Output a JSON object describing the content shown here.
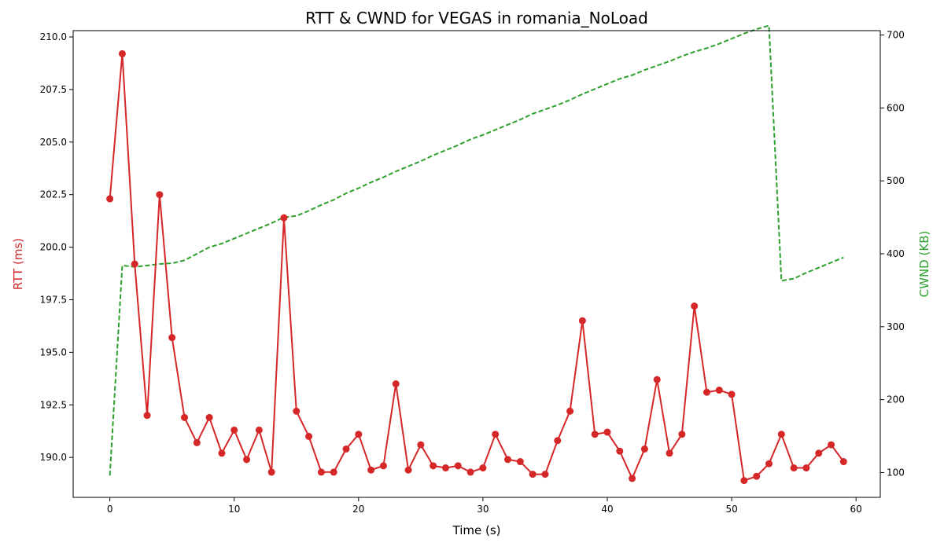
{
  "chart_data": {
    "type": "line",
    "title": "RTT & CWND for VEGAS in romania_NoLoad",
    "xlabel": "Time (s)",
    "ylabel_left": "RTT (ms)",
    "ylabel_right": "CWND (KB)",
    "xlim": [
      -2.95,
      61.95
    ],
    "ylim_left": [
      188.1,
      210.3
    ],
    "ylim_right": [
      66,
      706
    ],
    "x_ticks": [
      0,
      10,
      20,
      30,
      40,
      50,
      60
    ],
    "y_left_ticks": [
      190.0,
      192.5,
      195.0,
      197.5,
      200.0,
      202.5,
      205.0,
      207.5,
      210.0
    ],
    "y_left_tick_labels": [
      "190.0",
      "192.5",
      "195.0",
      "197.5",
      "200.0",
      "202.5",
      "205.0",
      "207.5",
      "210.0"
    ],
    "y_right_ticks": [
      100,
      200,
      300,
      400,
      500,
      600,
      700
    ],
    "grid": false,
    "colors": {
      "rtt": "#d62728",
      "cwnd": "#2ca02c"
    },
    "x": [
      0,
      1,
      2,
      3,
      4,
      5,
      6,
      7,
      8,
      9,
      10,
      11,
      12,
      13,
      14,
      15,
      16,
      17,
      18,
      19,
      20,
      21,
      22,
      23,
      24,
      25,
      26,
      27,
      28,
      29,
      30,
      31,
      32,
      33,
      34,
      35,
      36,
      37,
      38,
      39,
      40,
      41,
      42,
      43,
      44,
      45,
      46,
      47,
      48,
      49,
      50,
      51,
      52,
      53,
      54,
      55,
      56,
      57,
      58,
      59
    ],
    "series": [
      {
        "axis": "left",
        "style": "solid-with-markers",
        "values": [
          202.3,
          209.2,
          199.2,
          192.0,
          202.5,
          195.7,
          191.9,
          190.7,
          191.9,
          190.2,
          191.3,
          189.9,
          191.3,
          189.3,
          201.4,
          192.2,
          191.0,
          189.3,
          189.3,
          190.4,
          191.1,
          189.4,
          189.6,
          193.5,
          189.4,
          190.6,
          189.6,
          189.5,
          189.6,
          189.3,
          189.5,
          191.1,
          189.9,
          189.8,
          189.2,
          189.2,
          190.8,
          192.2,
          196.5,
          191.1,
          191.2,
          190.3,
          189.0,
          190.4,
          193.7,
          190.2,
          191.1,
          197.2,
          193.1,
          193.2,
          193.0,
          188.9,
          189.1,
          189.7,
          191.1,
          189.5,
          189.5,
          190.2,
          190.6,
          189.8
        ]
      },
      {
        "axis": "right",
        "style": "dashed",
        "values": [
          96,
          384,
          382,
          384,
          386,
          387,
          391,
          400,
          409,
          414,
          421,
          428,
          435,
          442,
          450,
          452,
          459,
          467,
          474,
          483,
          490,
          498,
          505,
          513,
          520,
          527,
          535,
          542,
          549,
          557,
          563,
          570,
          577,
          584,
          592,
          598,
          604,
          611,
          619,
          626,
          633,
          640,
          645,
          652,
          658,
          664,
          671,
          677,
          682,
          688,
          695,
          702,
          708,
          713,
          363,
          366,
          374,
          381,
          388,
          395
        ]
      }
    ]
  }
}
